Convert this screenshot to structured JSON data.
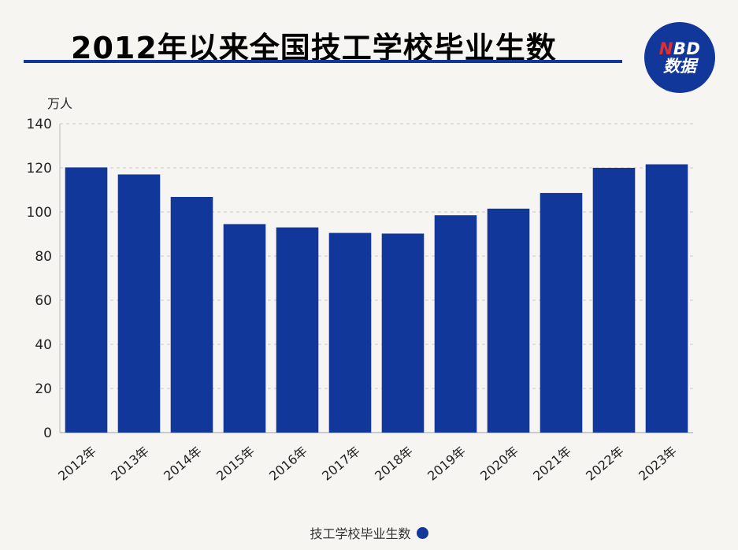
{
  "header": {
    "title": "2012年以来全国技工学校毕业生数",
    "logo_top_n": "N",
    "logo_top_rest": "BD",
    "logo_bottom": "数据"
  },
  "colors": {
    "bar": "#12379a",
    "accent": "#12379a",
    "logo_n": "#e52d2d"
  },
  "chart_data": {
    "type": "bar",
    "title": "2012年以来全国技工学校毕业生数",
    "ylabel": "万人",
    "xlabel": "",
    "ylim": [
      0,
      140
    ],
    "yticks": [
      0,
      20,
      40,
      60,
      80,
      100,
      120,
      140
    ],
    "categories": [
      "2012年",
      "2013年",
      "2014年",
      "2015年",
      "2016年",
      "2017年",
      "2018年",
      "2019年",
      "2020年",
      "2021年",
      "2022年",
      "2023年"
    ],
    "series": [
      {
        "name": "技工学校毕业生数",
        "values": [
          120.2,
          117.0,
          106.8,
          94.5,
          93.0,
          90.5,
          90.2,
          98.5,
          101.5,
          108.6,
          120.0,
          121.6
        ]
      }
    ],
    "legend_position": "bottom-center",
    "grid": true
  }
}
